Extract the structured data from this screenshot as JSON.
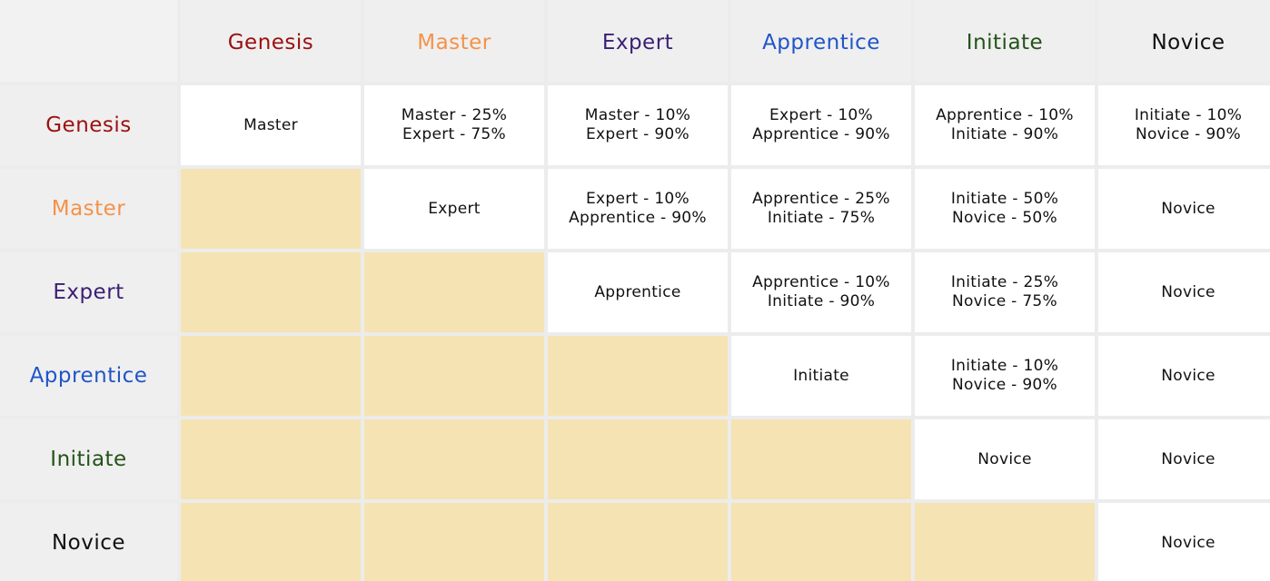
{
  "tiers": [
    {
      "name": "Genesis",
      "color": "#9b1010"
    },
    {
      "name": "Master",
      "color": "#f4924a"
    },
    {
      "name": "Expert",
      "color": "#3a1f74"
    },
    {
      "name": "Apprentice",
      "color": "#1f55c9"
    },
    {
      "name": "Initiate",
      "color": "#245219"
    },
    {
      "name": "Novice",
      "color": "#111111"
    }
  ],
  "empty_color": "#f5e3b3",
  "matrix": [
    [
      [
        "Master"
      ],
      [
        "Master - 25%",
        "Expert - 75%"
      ],
      [
        "Master - 10%",
        "Expert - 90%"
      ],
      [
        "Expert - 10%",
        "Apprentice - 90%"
      ],
      [
        "Apprentice - 10%",
        "Initiate - 90%"
      ],
      [
        "Initiate - 10%",
        "Novice - 90%"
      ]
    ],
    [
      null,
      [
        "Expert"
      ],
      [
        "Expert - 10%",
        "Apprentice - 90%"
      ],
      [
        "Apprentice - 25%",
        "Initiate - 75%"
      ],
      [
        "Initiate - 50%",
        "Novice - 50%"
      ],
      [
        "Novice"
      ]
    ],
    [
      null,
      null,
      [
        "Apprentice"
      ],
      [
        "Apprentice - 10%",
        "Initiate - 90%"
      ],
      [
        "Initiate - 25%",
        "Novice - 75%"
      ],
      [
        "Novice"
      ]
    ],
    [
      null,
      null,
      null,
      [
        "Initiate"
      ],
      [
        "Initiate - 10%",
        "Novice - 90%"
      ],
      [
        "Novice"
      ]
    ],
    [
      null,
      null,
      null,
      null,
      [
        "Novice"
      ],
      [
        "Novice"
      ]
    ],
    [
      null,
      null,
      null,
      null,
      null,
      [
        "Novice"
      ]
    ]
  ]
}
